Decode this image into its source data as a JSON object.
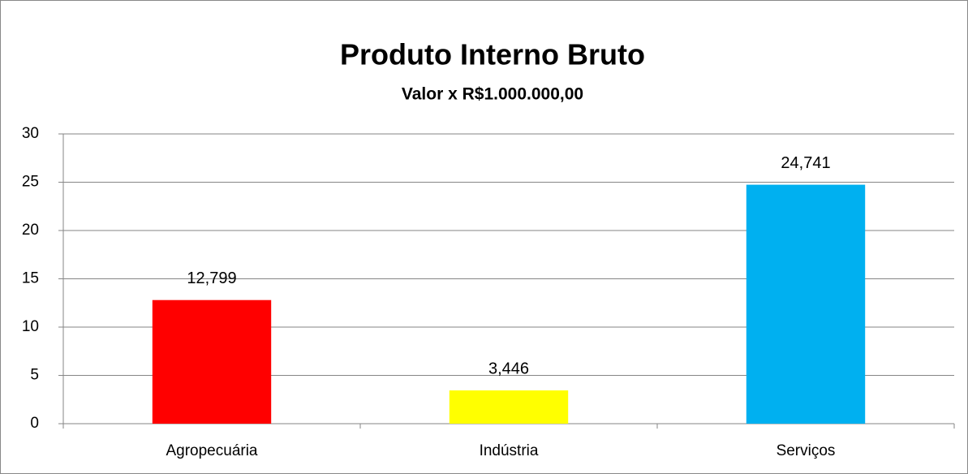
{
  "chart_data": {
    "type": "bar",
    "title": "Produto Interno Bruto",
    "subtitle": "Valor x R$1.000.000,00",
    "categories": [
      "Agropecuária",
      "Indústria",
      "Serviços"
    ],
    "values": [
      12.799,
      3.446,
      24.741
    ],
    "value_labels": [
      "12,799",
      "3,446",
      "24,741"
    ],
    "colors": [
      "#ff0000",
      "#ffff00",
      "#00b0f0"
    ],
    "ylim": [
      0,
      30
    ],
    "yticks": [
      0,
      5,
      10,
      15,
      20,
      25,
      30
    ],
    "grid": true
  }
}
